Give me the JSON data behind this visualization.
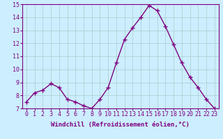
{
  "hours": [
    0,
    1,
    2,
    3,
    4,
    5,
    6,
    7,
    8,
    9,
    10,
    11,
    12,
    13,
    14,
    15,
    16,
    17,
    18,
    19,
    20,
    21,
    22,
    23
  ],
  "values": [
    7.5,
    8.2,
    8.4,
    8.9,
    8.6,
    7.7,
    7.5,
    7.2,
    7.0,
    7.7,
    8.6,
    10.5,
    12.3,
    13.2,
    14.0,
    14.9,
    14.5,
    13.3,
    11.9,
    10.5,
    9.4,
    8.6,
    7.7,
    7.0
  ],
  "line_color": "#800080",
  "marker": "+",
  "marker_size": 4,
  "marker_lw": 1.0,
  "bg_color": "#cceeff",
  "grid_color": "#aacccc",
  "xlabel": "Windchill (Refroidissement éolien,°C)",
  "xlabel_color": "#800080",
  "tick_color": "#800080",
  "ylim": [
    7,
    15
  ],
  "yticks": [
    7,
    8,
    9,
    10,
    11,
    12,
    13,
    14,
    15
  ],
  "axis_label_fontsize": 6.5,
  "tick_fontsize": 6.0,
  "linewidth": 1.0
}
